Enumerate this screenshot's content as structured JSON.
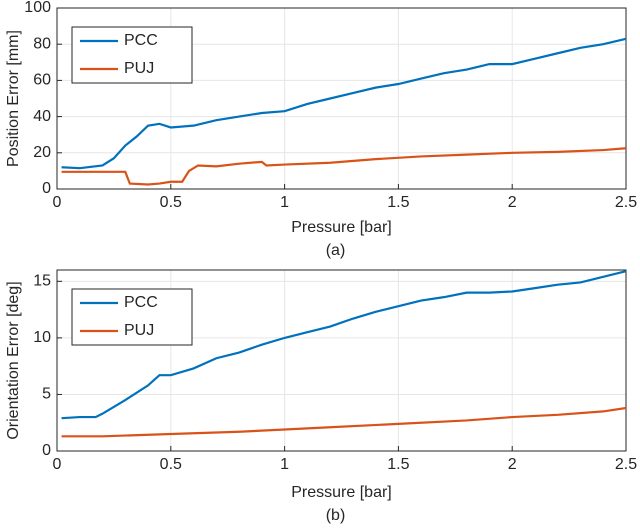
{
  "chart_data": [
    {
      "type": "line",
      "ylabel": "Position Error [mm]",
      "xlabel": "Pressure [bar]",
      "caption": "(a)",
      "xlim": [
        0,
        2.5
      ],
      "xticks": [
        0,
        0.5,
        1,
        1.5,
        2,
        2.5
      ],
      "ylim": [
        0,
        100
      ],
      "yticks": [
        0,
        20,
        40,
        60,
        80,
        100
      ],
      "grid": true,
      "legend": "upper left",
      "series": [
        {
          "name": "PCC",
          "color": "#0072bd",
          "x": [
            0.02,
            0.1,
            0.2,
            0.25,
            0.3,
            0.35,
            0.4,
            0.45,
            0.5,
            0.6,
            0.7,
            0.8,
            0.9,
            1.0,
            1.1,
            1.2,
            1.3,
            1.4,
            1.5,
            1.6,
            1.7,
            1.8,
            1.9,
            2.0,
            2.1,
            2.2,
            2.3,
            2.4,
            2.5
          ],
          "values": [
            12,
            11.5,
            13,
            17,
            24,
            29,
            35,
            36,
            34,
            35,
            38,
            40,
            42,
            43,
            47,
            50,
            53,
            56,
            58,
            61,
            64,
            66,
            69,
            69,
            72,
            75,
            78,
            80,
            83
          ]
        },
        {
          "name": "PUJ",
          "color": "#d95319",
          "x": [
            0.02,
            0.1,
            0.2,
            0.3,
            0.32,
            0.4,
            0.45,
            0.5,
            0.55,
            0.58,
            0.62,
            0.7,
            0.8,
            0.9,
            0.92,
            1.0,
            1.2,
            1.4,
            1.6,
            1.8,
            2.0,
            2.2,
            2.4,
            2.5
          ],
          "values": [
            9.5,
            9.5,
            9.5,
            9.5,
            3,
            2.5,
            3,
            4,
            4,
            10,
            13,
            12.5,
            14,
            15,
            13,
            13.5,
            14.5,
            16.5,
            18,
            19,
            20,
            20.5,
            21.5,
            22.5
          ]
        }
      ]
    },
    {
      "type": "line",
      "ylabel": "Orientation Error [deg]",
      "xlabel": "Pressure [bar]",
      "caption": "(b)",
      "xlim": [
        0,
        2.5
      ],
      "xticks": [
        0,
        0.5,
        1,
        1.5,
        2,
        2.5
      ],
      "ylim": [
        0,
        16
      ],
      "yticks": [
        0,
        5,
        10,
        15
      ],
      "grid": true,
      "legend": "upper left",
      "series": [
        {
          "name": "PCC",
          "color": "#0072bd",
          "x": [
            0.02,
            0.1,
            0.17,
            0.2,
            0.3,
            0.4,
            0.45,
            0.5,
            0.6,
            0.7,
            0.8,
            0.9,
            1.0,
            1.1,
            1.2,
            1.3,
            1.4,
            1.5,
            1.6,
            1.7,
            1.8,
            1.9,
            2.0,
            2.1,
            2.2,
            2.3,
            2.4,
            2.5
          ],
          "values": [
            2.9,
            3,
            3,
            3.3,
            4.5,
            5.8,
            6.7,
            6.7,
            7.3,
            8.2,
            8.7,
            9.4,
            10,
            10.5,
            11,
            11.7,
            12.3,
            12.8,
            13.3,
            13.6,
            14,
            14,
            14.1,
            14.4,
            14.7,
            14.9,
            15.4,
            15.9
          ]
        },
        {
          "name": "PUJ",
          "color": "#d95319",
          "x": [
            0.02,
            0.2,
            0.5,
            0.8,
            1.0,
            1.2,
            1.5,
            1.8,
            2.0,
            2.2,
            2.4,
            2.5
          ],
          "values": [
            1.3,
            1.3,
            1.5,
            1.7,
            1.9,
            2.1,
            2.4,
            2.7,
            3.0,
            3.2,
            3.5,
            3.8
          ]
        }
      ]
    }
  ]
}
